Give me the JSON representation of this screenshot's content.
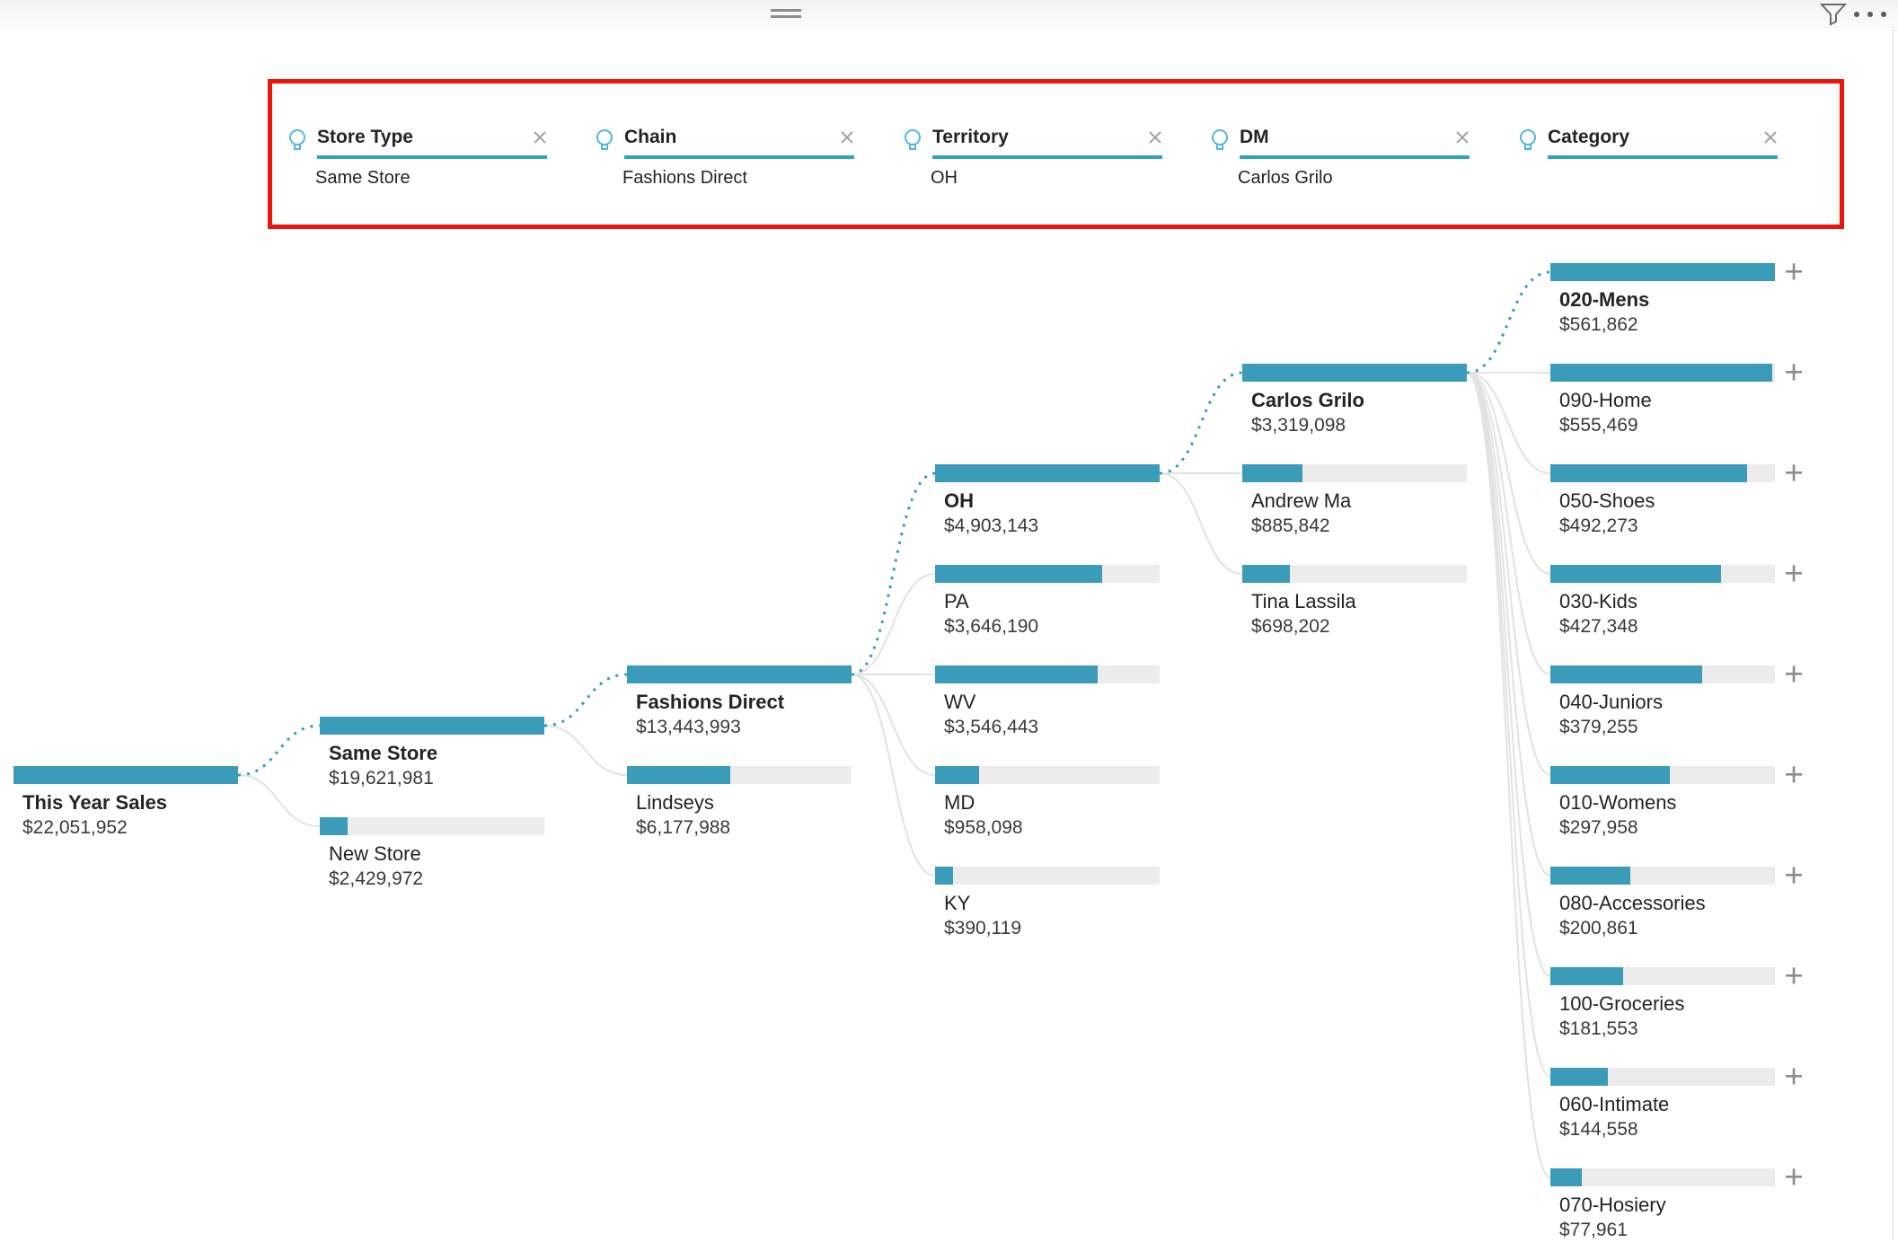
{
  "window": {
    "topbar": {
      "drag_handle_icon": "drag-handle",
      "filter_icon": "funnel-icon",
      "more_options_icon": "ellipsis-icon"
    }
  },
  "colors": {
    "accent_teal": "#3A9CB9",
    "breadcrumb_underline": "#2EA3C5",
    "lightbulb_blue": "#53B7DA",
    "bar_track_gray": "#ECECEC",
    "connector_gray": "#E2E2E2",
    "selected_path_teal": "#3A9CB9",
    "highlight_box_red": "#E9150F",
    "text_dark": "#252423"
  },
  "icons": {
    "expand_glyph": "+",
    "breadcrumb_bulb": "lightbulb-icon",
    "breadcrumb_remove": "x-icon",
    "expand_node": "plus-icon"
  },
  "breadcrumbs": [
    {
      "label": "Store Type",
      "value": "Same Store"
    },
    {
      "label": "Chain",
      "value": "Fashions Direct"
    },
    {
      "label": "Territory",
      "value": "OH"
    },
    {
      "label": "DM",
      "value": "Carlos Grilo"
    },
    {
      "label": "Category",
      "value": ""
    }
  ],
  "tree": {
    "type": "decomposition-tree",
    "measure": "This Year Sales",
    "levels": [
      {
        "field": "This Year Sales",
        "nodes": [
          {
            "label": "This Year Sales",
            "value": 22051952,
            "display": "$22,051,952",
            "selected": true
          }
        ]
      },
      {
        "field": "Store Type",
        "nodes": [
          {
            "label": "Same Store",
            "value": 19621981,
            "display": "$19,621,981",
            "selected": true
          },
          {
            "label": "New Store",
            "value": 2429972,
            "display": "$2,429,972",
            "selected": false
          }
        ]
      },
      {
        "field": "Chain",
        "nodes": [
          {
            "label": "Fashions Direct",
            "value": 13443993,
            "display": "$13,443,993",
            "selected": true
          },
          {
            "label": "Lindseys",
            "value": 6177988,
            "display": "$6,177,988",
            "selected": false
          }
        ]
      },
      {
        "field": "Territory",
        "nodes": [
          {
            "label": "OH",
            "value": 4903143,
            "display": "$4,903,143",
            "selected": true
          },
          {
            "label": "PA",
            "value": 3646190,
            "display": "$3,646,190",
            "selected": false
          },
          {
            "label": "WV",
            "value": 3546443,
            "display": "$3,546,443",
            "selected": false
          },
          {
            "label": "MD",
            "value": 958098,
            "display": "$958,098",
            "selected": false
          },
          {
            "label": "KY",
            "value": 390119,
            "display": "$390,119",
            "selected": false
          }
        ]
      },
      {
        "field": "DM",
        "nodes": [
          {
            "label": "Carlos Grilo",
            "value": 3319098,
            "display": "$3,319,098",
            "selected": true
          },
          {
            "label": "Andrew Ma",
            "value": 885842,
            "display": "$885,842",
            "selected": false
          },
          {
            "label": "Tina Lassila",
            "value": 698202,
            "display": "$698,202",
            "selected": false
          }
        ]
      },
      {
        "field": "Category",
        "nodes": [
          {
            "label": "020-Mens",
            "value": 561862,
            "display": "$561,862",
            "selected": true
          },
          {
            "label": "090-Home",
            "value": 555469,
            "display": "$555,469",
            "selected": false
          },
          {
            "label": "050-Shoes",
            "value": 492273,
            "display": "$492,273",
            "selected": false
          },
          {
            "label": "030-Kids",
            "value": 427348,
            "display": "$427,348",
            "selected": false
          },
          {
            "label": "040-Juniors",
            "value": 379255,
            "display": "$379,255",
            "selected": false
          },
          {
            "label": "010-Womens",
            "value": 297958,
            "display": "$297,958",
            "selected": false
          },
          {
            "label": "080-Accessories",
            "value": 200861,
            "display": "$200,861",
            "selected": false
          },
          {
            "label": "100-Groceries",
            "value": 181553,
            "display": "$181,553",
            "selected": false
          },
          {
            "label": "060-Intimate",
            "value": 144558,
            "display": "$144,558",
            "selected": false
          },
          {
            "label": "070-Hosiery",
            "value": 77961,
            "display": "$77,961",
            "selected": false
          }
        ]
      }
    ]
  }
}
